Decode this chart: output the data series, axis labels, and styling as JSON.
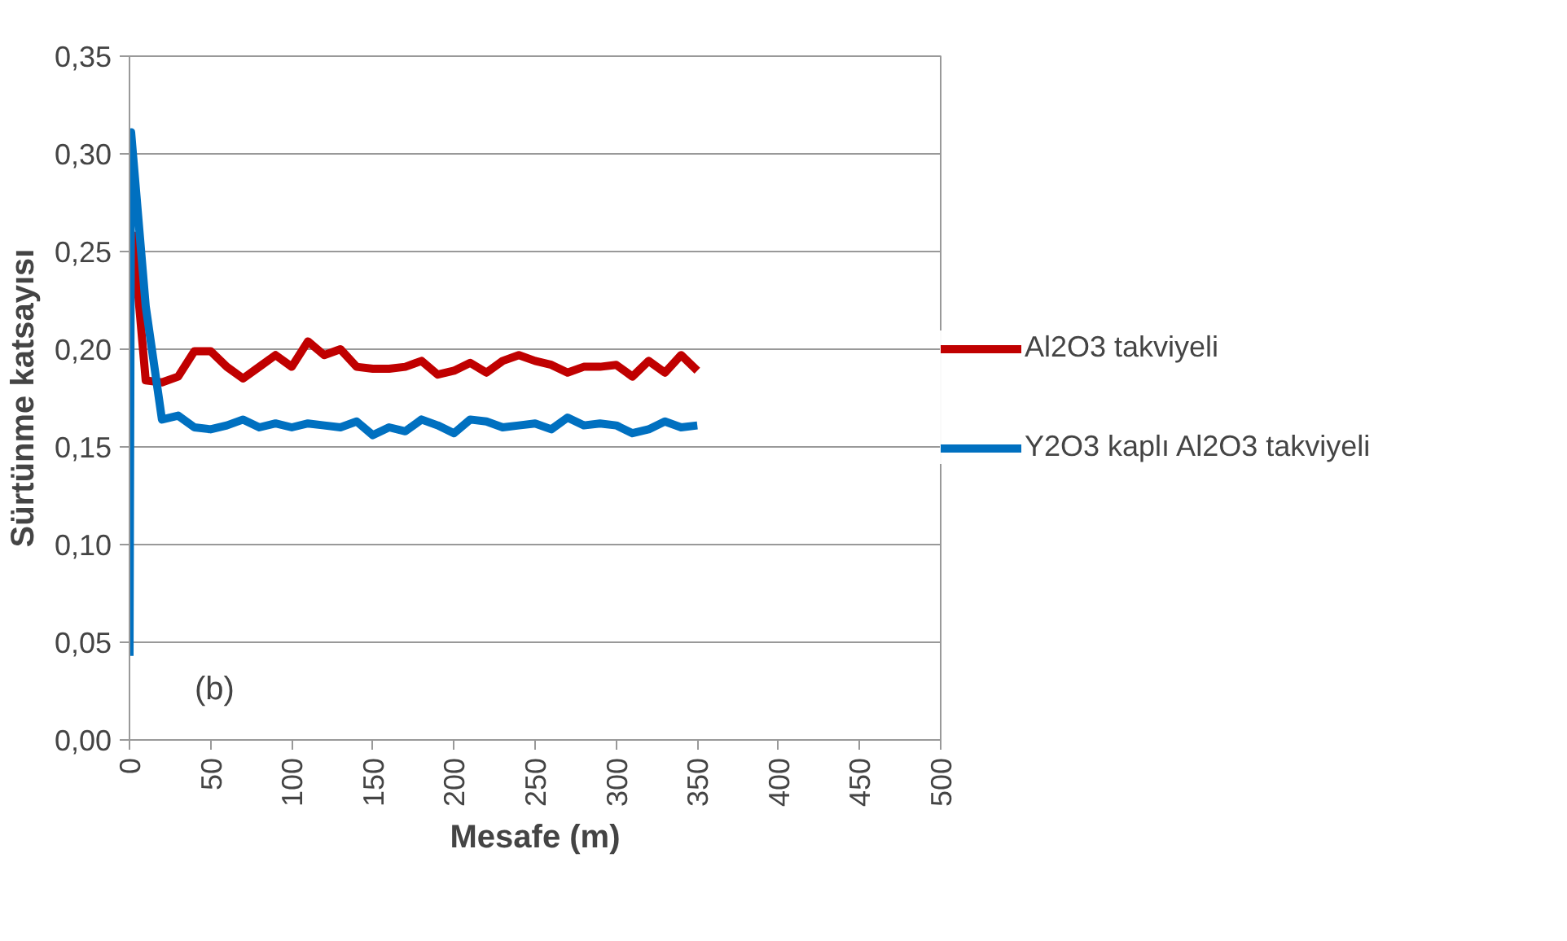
{
  "chart_data": {
    "type": "line",
    "xlabel": "Mesafe (m)",
    "ylabel": "Sürtünme katsayısı",
    "annotations": [
      "(b)"
    ],
    "xlim": [
      0,
      500
    ],
    "xticks": [
      0,
      50,
      100,
      150,
      200,
      250,
      300,
      350,
      400,
      450,
      500
    ],
    "ylim": [
      0,
      0.35
    ],
    "yticks": [
      {
        "value": 0,
        "label": "0,00"
      },
      {
        "value": 0.05,
        "label": "0,05"
      },
      {
        "value": 0.1,
        "label": "0,10"
      },
      {
        "value": 0.15,
        "label": "0,15"
      },
      {
        "value": 0.2,
        "label": "0,20"
      },
      {
        "value": 0.25,
        "label": "0,25"
      },
      {
        "value": 0.3,
        "label": "0,30"
      },
      {
        "value": 0.35,
        "label": "0,35"
      }
    ],
    "grid": "y",
    "legend": "right",
    "marker": "none",
    "line_style": "solid",
    "series": [
      {
        "name": "Al2O3 takviyeli",
        "color": "#c00000",
        "x": [
          2,
          10,
          20,
          30,
          40,
          50,
          60,
          70,
          80,
          90,
          100,
          110,
          120,
          130,
          140,
          150,
          160,
          170,
          180,
          190,
          200,
          210,
          220,
          230,
          240,
          250,
          260,
          270,
          280,
          290,
          300,
          310,
          320,
          330,
          340,
          350
        ],
        "values": [
          0.26,
          0.184,
          0.183,
          0.186,
          0.199,
          0.199,
          0.191,
          0.185,
          0.191,
          0.197,
          0.191,
          0.204,
          0.197,
          0.2,
          0.191,
          0.19,
          0.19,
          0.191,
          0.194,
          0.187,
          0.189,
          0.193,
          0.188,
          0.194,
          0.197,
          0.194,
          0.192,
          0.188,
          0.191,
          0.191,
          0.192,
          0.186,
          0.194,
          0.188,
          0.197,
          0.189
        ]
      },
      {
        "name": "Y2O3 kaplı Al2O3 takviyeli",
        "color": "#0070c0",
        "x": [
          0,
          1,
          10,
          20,
          30,
          40,
          50,
          60,
          70,
          80,
          90,
          100,
          110,
          120,
          130,
          140,
          150,
          160,
          170,
          180,
          190,
          200,
          210,
          220,
          230,
          240,
          250,
          260,
          270,
          280,
          290,
          300,
          310,
          320,
          330,
          340,
          350
        ],
        "values": [
          0.043,
          0.311,
          0.222,
          0.164,
          0.166,
          0.16,
          0.159,
          0.161,
          0.164,
          0.16,
          0.162,
          0.16,
          0.162,
          0.161,
          0.16,
          0.163,
          0.156,
          0.16,
          0.158,
          0.164,
          0.161,
          0.157,
          0.164,
          0.163,
          0.16,
          0.161,
          0.162,
          0.159,
          0.165,
          0.161,
          0.162,
          0.161,
          0.157,
          0.159,
          0.163,
          0.16,
          0.161
        ]
      }
    ]
  }
}
